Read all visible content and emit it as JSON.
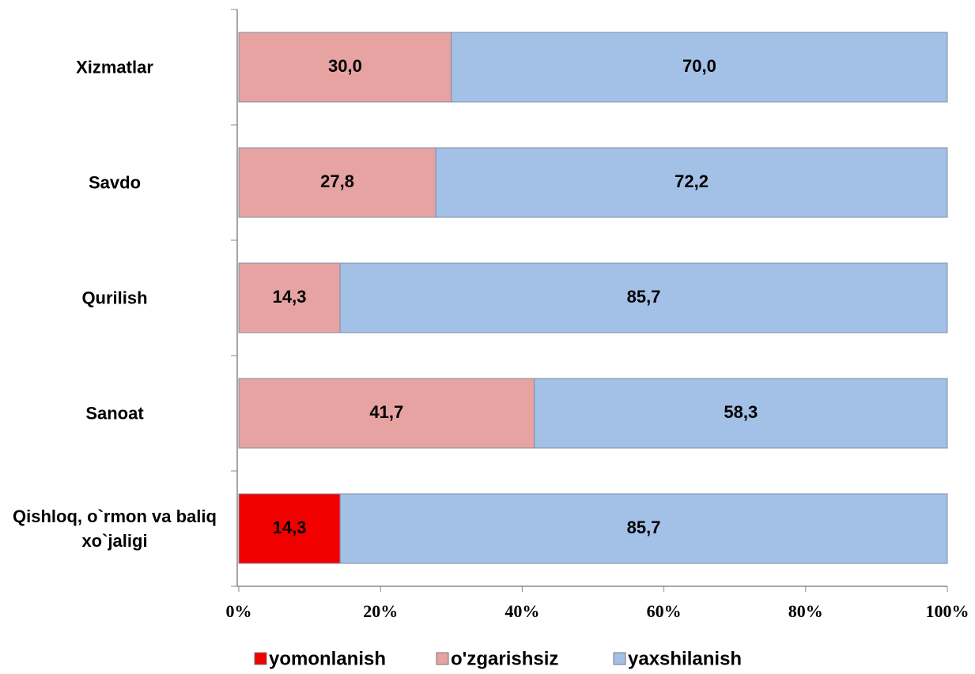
{
  "chart_data": {
    "type": "stacked_barh",
    "categories": [
      "Qishloq, o`rmon va baliq xo`jaligi",
      "Sanoat",
      "Qurilish",
      "Savdo",
      "Xizmatlar"
    ],
    "series": [
      {
        "name": "yomonlanish",
        "color": "#f20000",
        "values": [
          14.3,
          null,
          null,
          null,
          null
        ],
        "value_labels": [
          "14,3",
          null,
          null,
          null,
          null
        ]
      },
      {
        "name": "o'zgarishsiz",
        "color": "#e6a3a2",
        "values": [
          null,
          41.7,
          14.3,
          27.8,
          30.0
        ],
        "value_labels": [
          null,
          "41,7",
          "14,3",
          "27,8",
          "30,0"
        ]
      },
      {
        "name": "yaxshilanish",
        "color": "#a3c0e6",
        "values": [
          85.7,
          58.3,
          85.7,
          72.2,
          70.0
        ],
        "value_labels": [
          "85,7",
          "58,3",
          "85,7",
          "72,2",
          "70,0"
        ]
      }
    ],
    "xlim": [
      0,
      100
    ],
    "xticks": [
      {
        "value": 0,
        "label": "0%"
      },
      {
        "value": 20,
        "label": "20%"
      },
      {
        "value": 40,
        "label": "40%"
      },
      {
        "value": 60,
        "label": "60%"
      },
      {
        "value": 80,
        "label": "80%"
      },
      {
        "value": 100,
        "label": "100%"
      }
    ],
    "legend": "bottom"
  }
}
